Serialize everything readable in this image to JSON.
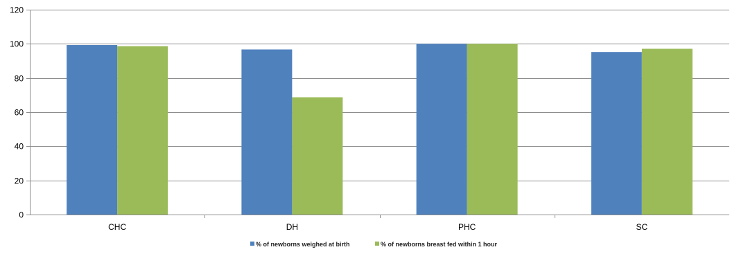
{
  "chart_data": {
    "type": "bar",
    "categories": [
      "CHC",
      "DH",
      "PHC",
      "SC"
    ],
    "series": [
      {
        "name": "% of newborns weighed at birth",
        "color": "#4F81BD",
        "values": [
          99.3,
          96.7,
          100,
          95.2
        ]
      },
      {
        "name": "% of newborns breast fed within 1 hour",
        "color": "#9BBB59",
        "values": [
          98.6,
          68.7,
          100,
          97.1
        ]
      }
    ],
    "ylim": [
      0,
      120
    ],
    "yticks": [
      0,
      20,
      40,
      60,
      80,
      100,
      120
    ],
    "grid": true,
    "legend_position": "bottom",
    "title": "",
    "xlabel": "",
    "ylabel": ""
  }
}
